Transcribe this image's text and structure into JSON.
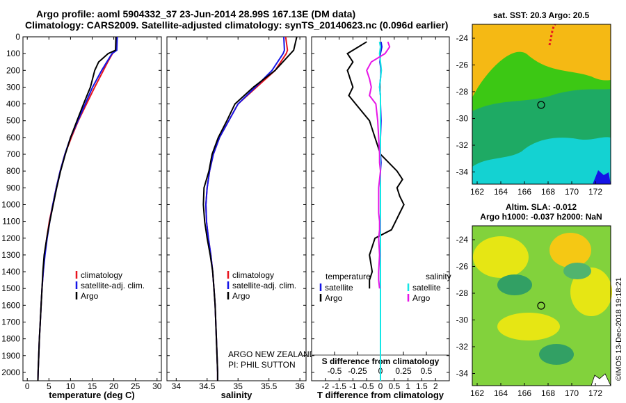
{
  "header": {
    "line1": "Argo profile: aoml 5904332_37 23-Jun-2014 28.99S 167.13E (DM data)",
    "line2": "Climatology: CARS2009. Satellite-adjusted climatology: synTS_20140623.nc (0.096d earlier)"
  },
  "panels": {
    "temperature": {
      "xlabel": "temperature (deg C)",
      "legend": [
        "climatology",
        "satellite-adj. clim.",
        "Argo"
      ]
    },
    "salinity": {
      "xlabel": "salinity",
      "legend": [
        "climatology",
        "satellite-adj. clim.",
        "Argo"
      ],
      "credit1": "ARGO NEW ZEALAND",
      "credit2": "PI: PHIL SUTTON"
    },
    "difference": {
      "xlabel": "T difference from climatology",
      "top_axis_label": "S difference from climatology",
      "legend_t_title": "temperature",
      "legend_s_title": "salinity",
      "legend_t": [
        "satellite",
        "Argo"
      ],
      "legend_s": [
        "satellite",
        "Argo"
      ]
    }
  },
  "maps": {
    "sst_title": "sat. SST: 20.3 Argo: 20.5",
    "sla_title1": "Altim. SLA: -0.012",
    "sla_title2": "Argo h1000: -0.037 h2000: NaN",
    "xticks": [
      "162",
      "164",
      "166",
      "168",
      "170",
      "172"
    ],
    "yticks": [
      "-24",
      "-26",
      "-28",
      "-30",
      "-32",
      "-34"
    ]
  },
  "footer_stamp": "©IMOS 13-Dec-2018 19:18:21",
  "colors": {
    "climatology": "#e8141e",
    "satellite": "#1414e6",
    "argo": "#000000",
    "sat_salinity": "#14e6e6",
    "argo_salinity": "#e614e6"
  },
  "chart_data": [
    {
      "type": "line",
      "ylabel_ticks": [
        "0",
        "100",
        "200",
        "300",
        "400",
        "500",
        "600",
        "700",
        "800",
        "900",
        "1000",
        "1100",
        "1200",
        "1300",
        "1400",
        "1500",
        "1600",
        "1700",
        "1800",
        "1900",
        "2000"
      ],
      "xticks": [
        "0",
        "5",
        "10",
        "15",
        "20",
        "25",
        "30"
      ],
      "xlim": [
        -1,
        31
      ],
      "ylim": [
        2050,
        0
      ],
      "y_inverted": true,
      "depth": [
        0,
        80,
        100,
        150,
        200,
        300,
        400,
        500,
        600,
        700,
        800,
        900,
        1000,
        1100,
        1200,
        1300,
        1400,
        1500,
        1600,
        1700,
        1800,
        1900,
        2000,
        2050
      ],
      "series": [
        {
          "name": "climatology",
          "values": [
            20.6,
            20.5,
            19.7,
            18.6,
            17.6,
            15.6,
            13.7,
            11.8,
            10.2,
            8.7,
            7.6,
            6.7,
            5.9,
            5.1,
            4.5,
            4.0,
            3.7,
            3.4,
            3.2,
            3.0,
            2.8,
            2.65,
            2.5,
            2.45
          ]
        },
        {
          "name": "satellite-adj. clim.",
          "values": [
            20.8,
            20.7,
            19.6,
            18.4,
            17.2,
            15.1,
            13.4,
            11.7,
            10.0,
            8.7,
            7.6,
            6.7,
            5.9,
            5.2,
            4.6,
            4.1,
            3.7,
            3.4,
            3.2,
            3.0,
            2.8,
            2.65,
            2.5,
            2.45
          ]
        },
        {
          "name": "Argo",
          "values": [
            20.5,
            20.4,
            18.7,
            16.5,
            15.6,
            14.6,
            13.0,
            11.5,
            10.0,
            8.8,
            7.7,
            6.8,
            6.0,
            5.2,
            4.5,
            3.9,
            3.6,
            3.4,
            3.2,
            3.0,
            2.8,
            2.65,
            2.5,
            2.45
          ]
        }
      ]
    },
    {
      "type": "line",
      "xticks": [
        "34",
        "34.5",
        "35",
        "35.5",
        "36"
      ],
      "xlim": [
        33.85,
        36.1
      ],
      "ylim": [
        2050,
        0
      ],
      "y_inverted": true,
      "depth": [
        0,
        80,
        100,
        200,
        300,
        400,
        500,
        600,
        700,
        800,
        900,
        1000,
        1100,
        1200,
        1300,
        1400,
        1500,
        1600,
        1700,
        1800,
        1900,
        2000,
        2050
      ],
      "series": [
        {
          "name": "climatology",
          "values": [
            35.77,
            35.8,
            35.78,
            35.6,
            35.3,
            35.0,
            34.85,
            34.7,
            34.6,
            34.54,
            34.5,
            34.48,
            34.49,
            34.52,
            34.56,
            34.59,
            34.61,
            34.63,
            34.64,
            34.65,
            34.66,
            34.67,
            34.67
          ]
        },
        {
          "name": "satellite-adj. clim.",
          "values": [
            35.74,
            35.75,
            35.73,
            35.55,
            35.28,
            35.0,
            34.85,
            34.7,
            34.6,
            34.54,
            34.5,
            34.48,
            34.49,
            34.52,
            34.56,
            34.59,
            34.61,
            34.63,
            34.64,
            34.65,
            34.66,
            34.67,
            34.67
          ]
        },
        {
          "name": "Argo",
          "values": [
            35.95,
            35.9,
            35.85,
            35.6,
            35.25,
            34.95,
            34.82,
            34.68,
            34.58,
            34.53,
            34.45,
            34.44,
            34.46,
            34.5,
            34.55,
            34.59,
            34.61,
            34.63,
            34.64,
            34.65,
            34.66,
            34.67,
            34.67
          ]
        }
      ]
    },
    {
      "type": "line",
      "xticks": [
        "-2",
        "-1.5",
        "-1",
        "-0.5",
        "0",
        "0.5",
        "1",
        "1.5",
        "2"
      ],
      "top_xticks": [
        "-0.5",
        "-0.25",
        "0",
        "0.25",
        "0.5"
      ],
      "xlim": [
        -2.5,
        2.5
      ],
      "top_xlim": [
        -0.75,
        0.75
      ],
      "ylim": [
        2050,
        0
      ],
      "y_inverted": true,
      "depth": [
        30,
        60,
        100,
        150,
        200,
        250,
        300,
        350,
        400,
        500,
        600,
        700,
        750,
        800,
        850,
        900,
        950,
        1000,
        1050,
        1100,
        1150,
        1200,
        1300,
        1400,
        1450,
        1500,
        1600,
        1700,
        1800,
        1900,
        2000,
        2050
      ],
      "series": [
        {
          "name": "T satellite",
          "values": [
            0.02,
            0.05,
            0.0,
            -0.02,
            0.02,
            0.0,
            -0.03,
            0.0,
            0.0,
            0.02,
            0.0,
            0.0,
            0.02,
            0.0,
            0.0,
            0.0,
            0.0,
            0.0,
            0.0,
            0.0,
            0.0,
            0.0,
            0.0,
            0.0,
            0.0,
            0.0,
            0.0,
            0.0,
            0.0,
            0.0,
            0.0,
            0.0
          ]
        },
        {
          "name": "T Argo",
          "values": [
            -0.5,
            -0.8,
            -1.2,
            -1.0,
            -1.2,
            -1.1,
            -1.0,
            -1.15,
            -0.9,
            -0.4,
            -0.2,
            0.0,
            0.3,
            0.6,
            0.8,
            0.6,
            0.7,
            0.85,
            0.7,
            0.55,
            0.4,
            -0.2,
            -0.4,
            -0.3,
            -0.4,
            -0.4,
            null,
            null,
            null,
            null,
            null,
            null
          ]
        },
        {
          "name": "S satellite",
          "values": [
            -0.01,
            0.0,
            -0.01,
            0.0,
            0.01,
            0.0,
            -0.01,
            0.0,
            0.0,
            0.0,
            0.0,
            0.0,
            0.0,
            0.0,
            0.0,
            0.0,
            0.0,
            0.0,
            0.0,
            0.0,
            0.0,
            0.0,
            0.0,
            0.0,
            0.0,
            0.0,
            0.0,
            0.0,
            0.0,
            0.0,
            0.0,
            0.0
          ]
        },
        {
          "name": "S Argo",
          "values": [
            0.08,
            0.1,
            0.05,
            -0.1,
            -0.15,
            -0.12,
            -0.1,
            -0.12,
            -0.05,
            -0.03,
            -0.02,
            -0.01,
            -0.01,
            0.0,
            -0.01,
            -0.02,
            -0.02,
            -0.02,
            -0.02,
            -0.01,
            -0.01,
            -0.02,
            -0.01,
            -0.02,
            -0.02,
            -0.01,
            null,
            null,
            null,
            null,
            null,
            null
          ]
        }
      ]
    }
  ]
}
